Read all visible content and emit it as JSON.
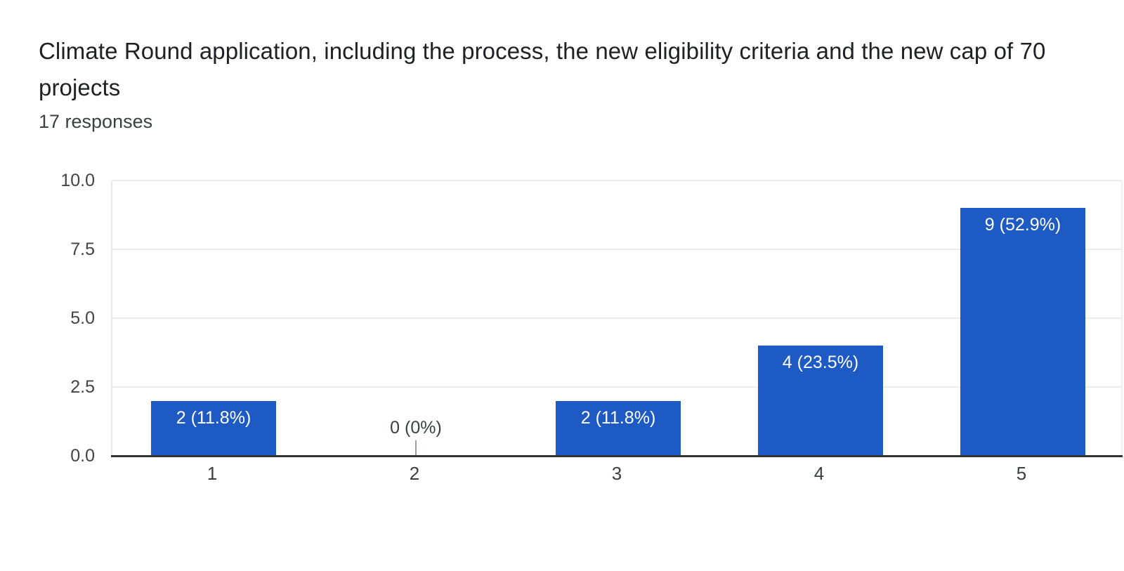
{
  "header": {
    "title": "Climate Round application, including the process, the new eligibility criteria and the new cap of 70 projects",
    "responses_label": "17 responses"
  },
  "colors": {
    "background": "#ffffff",
    "bar": "#1e5ac4",
    "grid": "#ededed",
    "axis_line": "#333333",
    "tick_text": "#444444",
    "label_text": "#3c4043",
    "bar_label_text": "#ffffff",
    "leader_line": "#9aa0a6",
    "title_text": "#202124"
  },
  "chart_data": {
    "type": "bar",
    "title": "Climate Round application, including the process, the new eligibility criteria and the new cap of 70 projects",
    "subtitle": "17 responses",
    "categories": [
      "1",
      "2",
      "3",
      "4",
      "5"
    ],
    "values": [
      2,
      0,
      2,
      4,
      9
    ],
    "percentages": [
      11.8,
      0,
      11.8,
      23.5,
      52.9
    ],
    "bar_labels": [
      "2 (11.8%)",
      "0 (0%)",
      "2 (11.8%)",
      "4 (23.5%)",
      "9 (52.9%)"
    ],
    "total_responses": 17,
    "xlabel": "",
    "ylabel": "",
    "ylim": [
      0,
      10
    ],
    "yticks": [
      "0.0",
      "2.5",
      "5.0",
      "7.5",
      "10.0"
    ],
    "grid": true,
    "legend": "none"
  }
}
